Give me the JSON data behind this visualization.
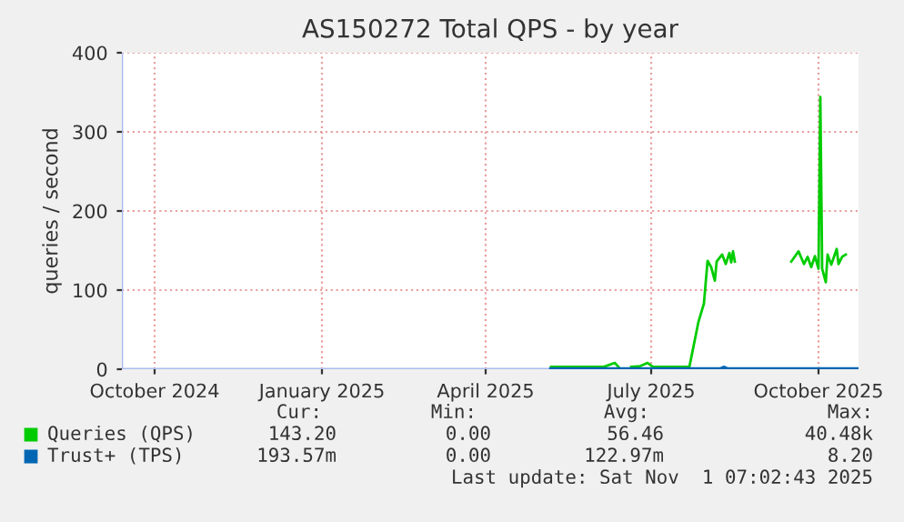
{
  "chart_data": {
    "type": "line",
    "title": "AS150272 Total QPS - by year",
    "ylabel": "queries / second",
    "xlim": [
      "2024-09-13",
      "2025-10-23"
    ],
    "ylim": [
      0,
      400
    ],
    "yticks": [
      0,
      100,
      200,
      300,
      400
    ],
    "xticks": [
      {
        "value": "2024-10-01",
        "label": "October 2024"
      },
      {
        "value": "2025-01-01",
        "label": "January 2025"
      },
      {
        "value": "2025-04-01",
        "label": "April 2025"
      },
      {
        "value": "2025-07-01",
        "label": "July 2025"
      },
      {
        "value": "2025-10-01",
        "label": "October 2025"
      }
    ],
    "grid": true,
    "legend": "bottom",
    "marker": "none",
    "line_style": "solid",
    "series": [
      {
        "name": "Queries (QPS)",
        "color": "#00cc00",
        "x": [
          "2025-05-07",
          "2025-05-20",
          "2025-06-05",
          "2025-06-11",
          "2025-06-13",
          "2025-06-16",
          "2025-06-20",
          "2025-06-25",
          "2025-06-29",
          "2025-07-02",
          "2025-07-10",
          "2025-07-22",
          "2025-07-25",
          "2025-07-27",
          "2025-07-30",
          "2025-08-01",
          "2025-08-03",
          "2025-08-05",
          "2025-08-06",
          "2025-08-09",
          "2025-08-11",
          "2025-08-13",
          "2025-08-14",
          "2025-08-15",
          "2025-08-16",
          "2025-08-20",
          "2025-09-16",
          "2025-09-20",
          "2025-09-23",
          "2025-09-25",
          "2025-09-27",
          "2025-09-29",
          "2025-10-01",
          "2025-10-02",
          "2025-10-03",
          "2025-10-05",
          "2025-10-06",
          "2025-10-08",
          "2025-10-11",
          "2025-10-12",
          "2025-10-14",
          "2025-10-16"
        ],
        "values": [
          3,
          3,
          3,
          8,
          3,
          null,
          3,
          4,
          8,
          3,
          3,
          3,
          37,
          60,
          83,
          137,
          129,
          112,
          136,
          145,
          133,
          147,
          135,
          149,
          136,
          null,
          136,
          149,
          133,
          142,
          129,
          143,
          127,
          344,
          127,
          110,
          145,
          132,
          152,
          133,
          142,
          145
        ]
      },
      {
        "name": "Trust+ (TPS)",
        "color": "#0066b3",
        "x": [
          "2025-05-07",
          "2025-08-08",
          "2025-08-10",
          "2025-08-12",
          "2025-10-23"
        ],
        "values": [
          0,
          0,
          2,
          0,
          0
        ]
      }
    ],
    "annotations": [
      "Cur:",
      "Min:",
      "Avg:",
      "Max:",
      "143.20",
      "0.00",
      "56.46",
      "40.48k",
      "193.57m",
      "0.00",
      "122.97m",
      "8.20",
      "Last update: Sat Nov  1 07:02:43 2025"
    ]
  }
}
